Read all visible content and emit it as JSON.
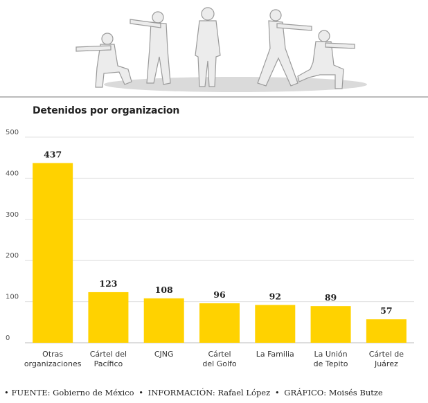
{
  "chart_data": {
    "type": "bar",
    "title": "Detenidos por organizacion",
    "categories": [
      [
        "Otras",
        "organizaciones"
      ],
      [
        "Cártel del",
        "Pacífico"
      ],
      [
        "CJNG"
      ],
      [
        "Cártel",
        "del Golfo"
      ],
      [
        "La Familia"
      ],
      [
        "La Unión",
        "de Tepito"
      ],
      [
        "Cártel de",
        "Juárez"
      ]
    ],
    "values": [
      437,
      123,
      108,
      96,
      92,
      89,
      57
    ],
    "yticks": [
      0,
      100,
      200,
      300,
      400,
      500
    ],
    "ylim": [
      0,
      500
    ],
    "grid": true,
    "xlabel": "",
    "ylabel": ""
  },
  "colors": {
    "bar": "#ffd200",
    "silhouette": "#ececec",
    "silhouette_outline": "#9a9a9a",
    "ground": "#dadada",
    "grid": "#e0e0e0"
  },
  "footer": {
    "bullet": "•",
    "fuente": "FUENTE: Gobierno de México",
    "informacion": "INFORMACIÓN: Rafael López",
    "grafico": "GRÁFICO: Moisés Butze"
  },
  "illustration": {
    "icon": "soldier-silhouettes"
  }
}
